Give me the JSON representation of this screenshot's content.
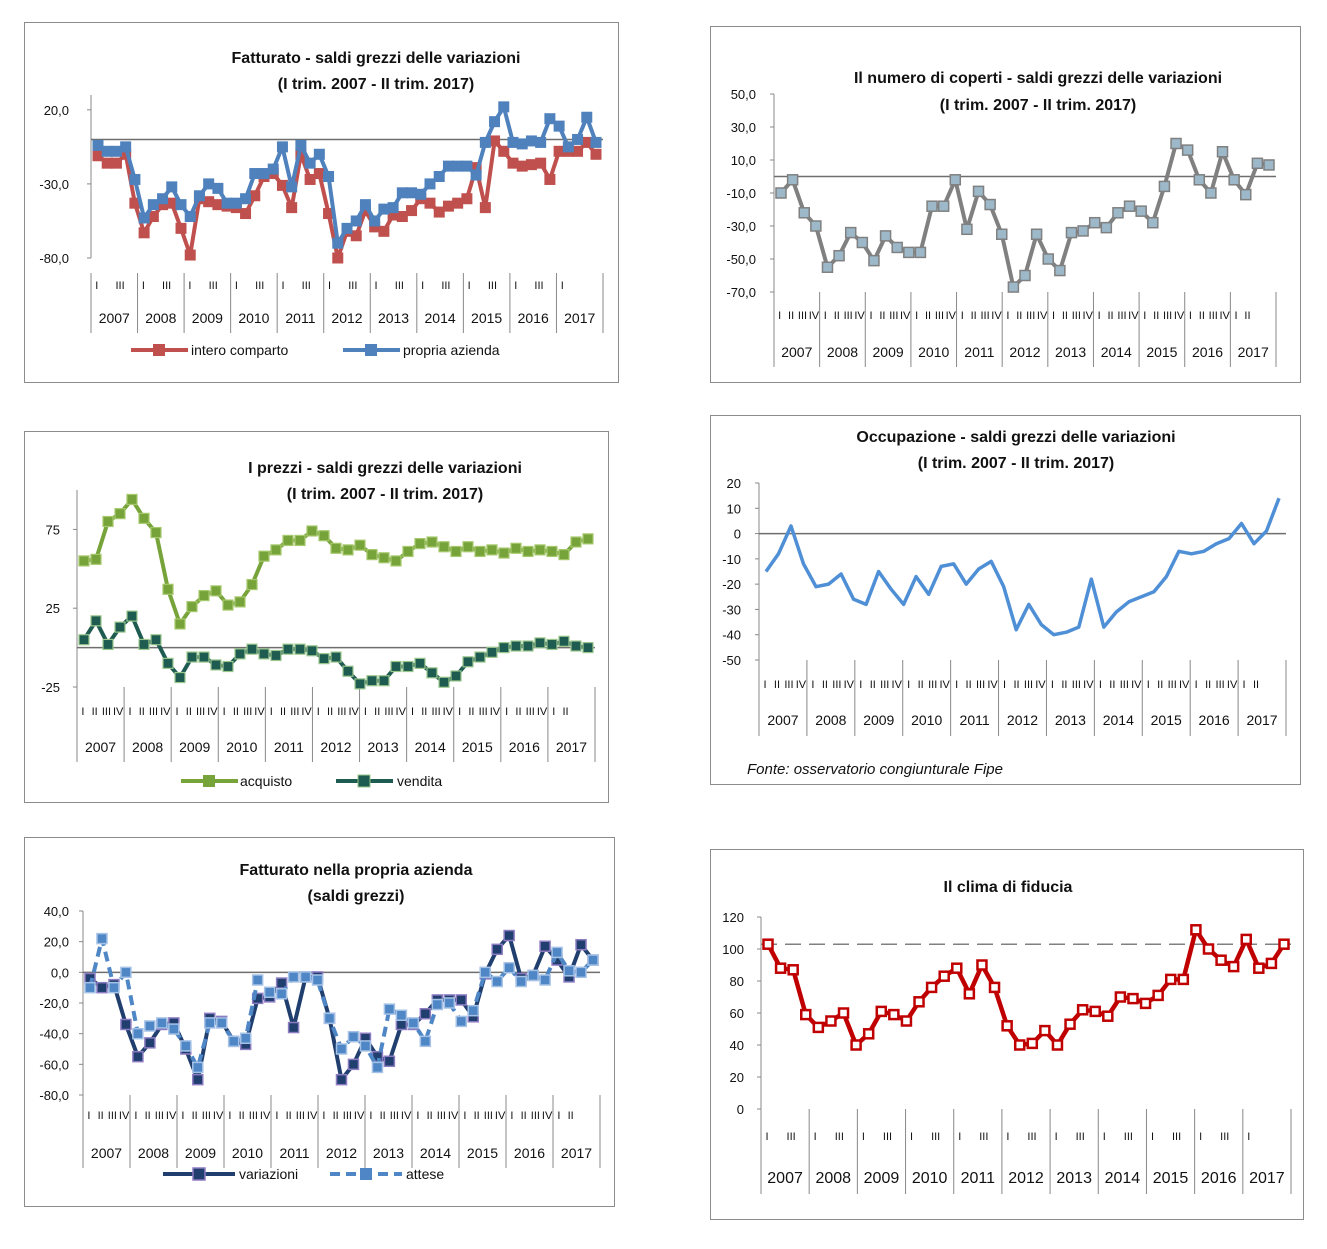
{
  "source_note": "Fonte: osservatorio congiunturale Fipe",
  "chart_data": [
    {
      "id": "fatturato",
      "type": "line",
      "title": "Fatturato - saldi grezzi delle variazioni",
      "subtitle": "(I trim. 2007 - II trim. 2017)",
      "ylim": [
        -80,
        30
      ],
      "yticks": [
        20.0,
        -30.0,
        -80.0
      ],
      "ytick_labels": [
        "20,0",
        "-30,0",
        "-80,0"
      ],
      "zero_line": 0,
      "years": [
        "2007",
        "2008",
        "2009",
        "2010",
        "2011",
        "2012",
        "2013",
        "2014",
        "2015",
        "2016",
        "2017"
      ],
      "quarter_marks": [
        "I",
        "",
        "III",
        ""
      ],
      "legend": "bottom",
      "series": [
        {
          "name": "intero comparto",
          "color": "#c0504d",
          "values": [
            -11,
            -16,
            -16,
            -10,
            -43,
            -63,
            -52,
            -44,
            -43,
            -60,
            -78,
            -40,
            -42,
            -44,
            -45,
            -46,
            -50,
            -38,
            -25,
            -23,
            -31,
            -46,
            -10,
            -27,
            -23,
            -50,
            -80,
            -62,
            -65,
            -48,
            -59,
            -62,
            -51,
            -52,
            -48,
            -40,
            -43,
            -49,
            -45,
            -43,
            -40,
            -19,
            -46,
            -1,
            -8,
            -16,
            -18,
            -17,
            -16,
            -27,
            -8,
            -8,
            -8,
            -2,
            -10
          ]
        },
        {
          "name": "propria azienda",
          "color": "#4f81bd",
          "values": [
            -4,
            -8,
            -8,
            -5,
            -27,
            -53,
            -44,
            -40,
            -32,
            -44,
            -52,
            -38,
            -30,
            -33,
            -43,
            -43,
            -40,
            -23,
            -23,
            -20,
            -5,
            -32,
            -4,
            -16,
            -10,
            -25,
            -70,
            -60,
            -55,
            -44,
            -55,
            -47,
            -46,
            -36,
            -36,
            -37,
            -30,
            -25,
            -18,
            -18,
            -18,
            -24,
            -2,
            12,
            22,
            -2,
            -3,
            -1,
            -2,
            14,
            9,
            -5,
            0,
            15,
            -2
          ]
        }
      ]
    },
    {
      "id": "coperti",
      "type": "line",
      "title": "Il numero di coperti - saldi grezzi delle variazioni",
      "subtitle": "(I trim. 2007 - II trim. 2017)",
      "ylim": [
        -70,
        50
      ],
      "yticks": [
        50,
        30,
        10,
        -10,
        -30,
        -50,
        -70
      ],
      "ytick_labels": [
        "50,0",
        "30,0",
        "10,0",
        "-10,0",
        "-30,0",
        "-50,0",
        "-70,0"
      ],
      "zero_line": 0,
      "years": [
        "2007",
        "2008",
        "2009",
        "2010",
        "2011",
        "2012",
        "2013",
        "2014",
        "2015",
        "2016",
        "2017"
      ],
      "quarter_marks": [
        "I",
        "II",
        "III",
        "IV"
      ],
      "series": [
        {
          "name": "",
          "color": "#808080",
          "values": [
            -10,
            -2,
            -22,
            -30,
            -55,
            -48,
            -34,
            -40,
            -51,
            -36,
            -43,
            -46,
            -46,
            -18,
            -18,
            -2,
            -32,
            -9,
            -17,
            -35,
            -67,
            -60,
            -35,
            -50,
            -57,
            -34,
            -33,
            -28,
            -31,
            -22,
            -18,
            -21,
            -28,
            -6,
            20,
            16,
            -2,
            -10,
            15,
            -2,
            -11,
            8,
            7
          ]
        }
      ]
    },
    {
      "id": "prezzi",
      "type": "line",
      "title": "I prezzi - saldi grezzi delle variazioni",
      "subtitle": "(I trim. 2007 - II trim. 2017)",
      "ylim": [
        -25,
        100
      ],
      "yticks": [
        75,
        25,
        -25
      ],
      "ytick_labels": [
        "75",
        "25",
        "-25"
      ],
      "zero_line": 0,
      "years": [
        "2007",
        "2008",
        "2009",
        "2010",
        "2011",
        "2012",
        "2013",
        "2014",
        "2015",
        "2016",
        "2017"
      ],
      "quarter_marks": [
        "I",
        "II",
        "III",
        "IV"
      ],
      "legend": "bottom",
      "series": [
        {
          "name": "acquisto",
          "color": "#77a33b",
          "values": [
            55,
            56,
            80,
            85,
            94,
            82,
            73,
            37,
            15,
            26,
            33,
            36,
            27,
            29,
            40,
            58,
            62,
            68,
            68,
            74,
            71,
            63,
            62,
            65,
            59,
            57,
            55,
            61,
            66,
            67,
            64,
            61,
            64,
            61,
            62,
            60,
            63,
            61,
            62,
            61,
            59,
            67,
            69
          ]
        },
        {
          "name": "vendita",
          "color": "#1e5b50",
          "values": [
            5,
            17,
            2,
            13,
            20,
            2,
            5,
            -10,
            -19,
            -6,
            -6,
            -11,
            -12,
            -4,
            -1,
            -4,
            -5,
            -1,
            -1,
            -2,
            -7,
            -6,
            -15,
            -23,
            -21,
            -21,
            -12,
            -12,
            -10,
            -16,
            -22,
            -18,
            -9,
            -6,
            -3,
            0,
            1,
            1,
            3,
            2,
            4,
            1,
            0
          ]
        }
      ]
    },
    {
      "id": "occupazione",
      "type": "line",
      "title": "Occupazione - saldi grezzi delle variazioni",
      "subtitle": "(I trim. 2007 - II trim. 2017)",
      "ylim": [
        -50,
        20
      ],
      "yticks": [
        20,
        10,
        0,
        -10,
        -20,
        -30,
        -40,
        -50
      ],
      "ytick_labels": [
        "20",
        "10",
        "0",
        "-10",
        "-20",
        "-30",
        "-40",
        "-50"
      ],
      "zero_line": 0,
      "years": [
        "2007",
        "2008",
        "2009",
        "2010",
        "2011",
        "2012",
        "2013",
        "2014",
        "2015",
        "2016",
        "2017"
      ],
      "quarter_marks": [
        "I",
        "II",
        "III",
        "IV"
      ],
      "series": [
        {
          "name": "",
          "color": "#4f8fd6",
          "values": [
            -15,
            -8,
            3,
            -12,
            -21,
            -20,
            -16,
            -26,
            -28,
            -15,
            -22,
            -28,
            -17,
            -24,
            -13,
            -12,
            -20,
            -14,
            -11,
            -21,
            -38,
            -28,
            -36,
            -40,
            -39,
            -37,
            -18,
            -37,
            -31,
            -27,
            -25,
            -23,
            -17,
            -7,
            -8,
            -7,
            -4,
            -2,
            4,
            -4,
            1,
            14
          ]
        }
      ]
    },
    {
      "id": "fatturato_azienda",
      "type": "line",
      "title": "Fatturato nella propria azienda",
      "subtitle": "(saldi grezzi)",
      "ylim": [
        -80,
        40
      ],
      "yticks": [
        40,
        20,
        0,
        -20,
        -40,
        -60,
        -80
      ],
      "ytick_labels": [
        "40,0",
        "20,0",
        "0,0",
        "-20,0",
        "-40,0",
        "-60,0",
        "-80,0"
      ],
      "zero_line": 0,
      "years": [
        "2007",
        "2008",
        "2009",
        "2010",
        "2011",
        "2012",
        "2013",
        "2014",
        "2015",
        "2016",
        "2017"
      ],
      "quarter_marks": [
        "I",
        "II",
        "III",
        "IV"
      ],
      "legend": "bottom",
      "series": [
        {
          "name": "variazioni",
          "color": "#203f6e",
          "dash": false,
          "values": [
            -4,
            -10,
            -8,
            -34,
            -55,
            -46,
            -34,
            -33,
            -50,
            -70,
            -30,
            -32,
            -45,
            -47,
            -17,
            -16,
            -7,
            -36,
            -3,
            -3,
            -30,
            -70,
            -60,
            -43,
            -55,
            -58,
            -34,
            -34,
            -27,
            -18,
            -18,
            -18,
            -29,
            -1,
            15,
            24,
            -4,
            -2,
            17,
            8,
            -3,
            18,
            8
          ]
        },
        {
          "name": "attese",
          "color": "#4f87c6",
          "dash": true,
          "values": [
            -10,
            22,
            -10,
            0,
            -40,
            -35,
            -33,
            -37,
            -48,
            -62,
            -33,
            -33,
            -45,
            -43,
            -5,
            -13,
            -14,
            -3,
            -3,
            -5,
            -30,
            -50,
            -42,
            -48,
            -62,
            -24,
            -28,
            -33,
            -45,
            -21,
            -20,
            -32,
            -25,
            0,
            -6,
            3,
            -6,
            -2,
            -5,
            13,
            1,
            0,
            8
          ]
        }
      ]
    },
    {
      "id": "clima",
      "type": "line",
      "title": "Il clima di fiducia",
      "subtitle": "",
      "ylim": [
        0,
        120
      ],
      "yticks": [
        120,
        100,
        80,
        60,
        40,
        20,
        0
      ],
      "ytick_labels": [
        "120",
        "100",
        "80",
        "60",
        "40",
        "20",
        "0"
      ],
      "reference_line": 103,
      "years": [
        "2007",
        "2008",
        "2009",
        "2010",
        "2011",
        "2012",
        "2013",
        "2014",
        "2015",
        "2016",
        "2017"
      ],
      "quarter_marks": [
        "I",
        "",
        "III",
        ""
      ],
      "series": [
        {
          "name": "",
          "color": "#c00000",
          "values": [
            103,
            88,
            87,
            59,
            51,
            55,
            60,
            40,
            47,
            61,
            59,
            55,
            67,
            76,
            83,
            88,
            72,
            90,
            76,
            52,
            40,
            41,
            49,
            40,
            53,
            62,
            61,
            58,
            70,
            69,
            66,
            71,
            81,
            81,
            112,
            100,
            93,
            89,
            106,
            88,
            91,
            103
          ]
        }
      ]
    }
  ]
}
